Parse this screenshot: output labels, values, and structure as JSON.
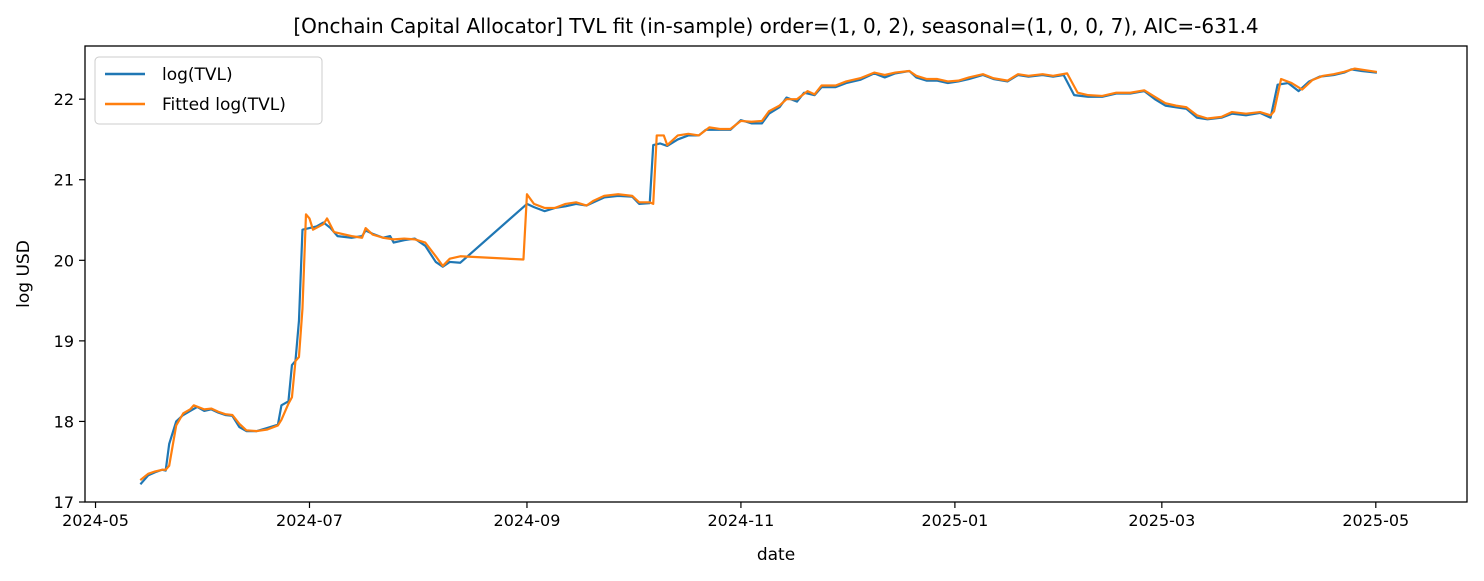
{
  "chart_data": {
    "type": "line",
    "title": "[Onchain Capital Allocator] TVL fit (in-sample)  order=(1, 0, 2), seasonal=(1, 0, 0, 7), AIC=-631.4",
    "xlabel": "date",
    "ylabel": "log USD",
    "xlim": [
      "2024-04-28",
      "2025-05-27"
    ],
    "ylim": [
      17.0,
      22.66
    ],
    "x_ticks": [
      "2024-05-01",
      "2024-07-01",
      "2024-09-01",
      "2024-11-01",
      "2025-01-01",
      "2025-03-01",
      "2025-05-01"
    ],
    "x_tick_labels": [
      "2024-05",
      "2024-07",
      "2024-09",
      "2024-11",
      "2025-01",
      "2025-03",
      "2025-05"
    ],
    "y_ticks": [
      17,
      18,
      19,
      20,
      21,
      22
    ],
    "y_tick_labels": [
      "17",
      "18",
      "19",
      "20",
      "21",
      "22"
    ],
    "grid": false,
    "legend_position": "top-left",
    "series": [
      {
        "name": "log(TVL)",
        "color": "#1f77b4",
        "points": [
          [
            "2024-05-14",
            17.23
          ],
          [
            "2024-05-16",
            17.33
          ],
          [
            "2024-05-18",
            17.37
          ],
          [
            "2024-05-20",
            17.4
          ],
          [
            "2024-05-21",
            17.39
          ],
          [
            "2024-05-22",
            17.72
          ],
          [
            "2024-05-24",
            18.0
          ],
          [
            "2024-05-26",
            18.08
          ],
          [
            "2024-05-28",
            18.13
          ],
          [
            "2024-05-30",
            18.18
          ],
          [
            "2024-06-01",
            18.13
          ],
          [
            "2024-06-03",
            18.15
          ],
          [
            "2024-06-05",
            18.11
          ],
          [
            "2024-06-07",
            18.08
          ],
          [
            "2024-06-09",
            18.07
          ],
          [
            "2024-06-11",
            17.93
          ],
          [
            "2024-06-13",
            17.88
          ],
          [
            "2024-06-16",
            17.88
          ],
          [
            "2024-06-19",
            17.92
          ],
          [
            "2024-06-22",
            17.96
          ],
          [
            "2024-06-23",
            18.2
          ],
          [
            "2024-06-25",
            18.25
          ],
          [
            "2024-06-26",
            18.7
          ],
          [
            "2024-06-27",
            18.75
          ],
          [
            "2024-06-28",
            19.25
          ],
          [
            "2024-06-29",
            20.38
          ],
          [
            "2024-07-01",
            20.4
          ],
          [
            "2024-07-03",
            20.42
          ],
          [
            "2024-07-05",
            20.47
          ],
          [
            "2024-07-07",
            20.4
          ],
          [
            "2024-07-09",
            20.3
          ],
          [
            "2024-07-13",
            20.28
          ],
          [
            "2024-07-16",
            20.3
          ],
          [
            "2024-07-17",
            20.37
          ],
          [
            "2024-07-19",
            20.33
          ],
          [
            "2024-07-22",
            20.28
          ],
          [
            "2024-07-24",
            20.3
          ],
          [
            "2024-07-25",
            20.22
          ],
          [
            "2024-07-28",
            20.25
          ],
          [
            "2024-07-31",
            20.27
          ],
          [
            "2024-08-03",
            20.18
          ],
          [
            "2024-08-06",
            19.98
          ],
          [
            "2024-08-08",
            19.92
          ],
          [
            "2024-08-10",
            19.98
          ],
          [
            "2024-08-13",
            19.97
          ],
          [
            "2024-09-01",
            20.7
          ],
          [
            "2024-09-03",
            20.66
          ],
          [
            "2024-09-06",
            20.61
          ],
          [
            "2024-09-09",
            20.65
          ],
          [
            "2024-09-12",
            20.67
          ],
          [
            "2024-09-15",
            20.7
          ],
          [
            "2024-09-18",
            20.68
          ],
          [
            "2024-09-20",
            20.72
          ],
          [
            "2024-09-23",
            20.78
          ],
          [
            "2024-09-27",
            20.8
          ],
          [
            "2024-10-01",
            20.79
          ],
          [
            "2024-10-03",
            20.7
          ],
          [
            "2024-10-06",
            20.71
          ],
          [
            "2024-10-07",
            21.43
          ],
          [
            "2024-10-09",
            21.45
          ],
          [
            "2024-10-11",
            21.42
          ],
          [
            "2024-10-14",
            21.5
          ],
          [
            "2024-10-17",
            21.55
          ],
          [
            "2024-10-20",
            21.55
          ],
          [
            "2024-10-22",
            21.62
          ],
          [
            "2024-10-26",
            21.62
          ],
          [
            "2024-10-29",
            21.62
          ],
          [
            "2024-11-01",
            21.74
          ],
          [
            "2024-11-04",
            21.7
          ],
          [
            "2024-11-07",
            21.7
          ],
          [
            "2024-11-09",
            21.82
          ],
          [
            "2024-11-12",
            21.9
          ],
          [
            "2024-11-14",
            22.02
          ],
          [
            "2024-11-17",
            21.97
          ],
          [
            "2024-11-19",
            22.08
          ],
          [
            "2024-11-22",
            22.05
          ],
          [
            "2024-11-24",
            22.15
          ],
          [
            "2024-11-28",
            22.15
          ],
          [
            "2024-12-01",
            22.2
          ],
          [
            "2024-12-05",
            22.24
          ],
          [
            "2024-12-09",
            22.32
          ],
          [
            "2024-12-12",
            22.27
          ],
          [
            "2024-12-15",
            22.32
          ],
          [
            "2024-12-19",
            22.35
          ],
          [
            "2024-12-21",
            22.27
          ],
          [
            "2024-12-24",
            22.23
          ],
          [
            "2024-12-27",
            22.23
          ],
          [
            "2024-12-30",
            22.2
          ],
          [
            "2025-01-02",
            22.22
          ],
          [
            "2025-01-05",
            22.25
          ],
          [
            "2025-01-09",
            22.3
          ],
          [
            "2025-01-12",
            22.25
          ],
          [
            "2025-01-16",
            22.22
          ],
          [
            "2025-01-19",
            22.3
          ],
          [
            "2025-01-22",
            22.28
          ],
          [
            "2025-01-26",
            22.3
          ],
          [
            "2025-01-29",
            22.28
          ],
          [
            "2025-02-01",
            22.3
          ],
          [
            "2025-02-04",
            22.05
          ],
          [
            "2025-02-08",
            22.03
          ],
          [
            "2025-02-12",
            22.03
          ],
          [
            "2025-02-16",
            22.07
          ],
          [
            "2025-02-20",
            22.07
          ],
          [
            "2025-02-24",
            22.1
          ],
          [
            "2025-02-27",
            22.0
          ],
          [
            "2025-03-02",
            21.92
          ],
          [
            "2025-03-05",
            21.9
          ],
          [
            "2025-03-08",
            21.88
          ],
          [
            "2025-03-11",
            21.77
          ],
          [
            "2025-03-14",
            21.75
          ],
          [
            "2025-03-18",
            21.77
          ],
          [
            "2025-03-21",
            21.82
          ],
          [
            "2025-03-25",
            21.8
          ],
          [
            "2025-03-29",
            21.83
          ],
          [
            "2025-04-01",
            21.77
          ],
          [
            "2025-04-03",
            22.18
          ],
          [
            "2025-04-06",
            22.2
          ],
          [
            "2025-04-09",
            22.1
          ],
          [
            "2025-04-12",
            22.22
          ],
          [
            "2025-04-15",
            22.28
          ],
          [
            "2025-04-19",
            22.3
          ],
          [
            "2025-04-22",
            22.33
          ],
          [
            "2025-04-24",
            22.37
          ],
          [
            "2025-04-27",
            22.35
          ],
          [
            "2025-05-01",
            22.33
          ]
        ]
      },
      {
        "name": "Fitted log(TVL)",
        "color": "#ff7f0e",
        "points": [
          [
            "2024-05-14",
            17.28
          ],
          [
            "2024-05-16",
            17.35
          ],
          [
            "2024-05-18",
            17.38
          ],
          [
            "2024-05-20",
            17.4
          ],
          [
            "2024-05-21",
            17.4
          ],
          [
            "2024-05-22",
            17.45
          ],
          [
            "2024-05-24",
            17.95
          ],
          [
            "2024-05-26",
            18.1
          ],
          [
            "2024-05-28",
            18.15
          ],
          [
            "2024-05-29",
            18.2
          ],
          [
            "2024-06-01",
            18.15
          ],
          [
            "2024-06-03",
            18.16
          ],
          [
            "2024-06-05",
            18.12
          ],
          [
            "2024-06-07",
            18.09
          ],
          [
            "2024-06-09",
            18.08
          ],
          [
            "2024-06-11",
            17.97
          ],
          [
            "2024-06-13",
            17.89
          ],
          [
            "2024-06-16",
            17.88
          ],
          [
            "2024-06-19",
            17.9
          ],
          [
            "2024-06-22",
            17.95
          ],
          [
            "2024-06-23",
            18.02
          ],
          [
            "2024-06-25",
            18.22
          ],
          [
            "2024-06-26",
            18.3
          ],
          [
            "2024-06-27",
            18.75
          ],
          [
            "2024-06-28",
            18.8
          ],
          [
            "2024-06-29",
            19.4
          ],
          [
            "2024-06-30",
            20.57
          ],
          [
            "2024-07-01",
            20.52
          ],
          [
            "2024-07-02",
            20.38
          ],
          [
            "2024-07-05",
            20.45
          ],
          [
            "2024-07-06",
            20.52
          ],
          [
            "2024-07-08",
            20.35
          ],
          [
            "2024-07-13",
            20.3
          ],
          [
            "2024-07-16",
            20.28
          ],
          [
            "2024-07-17",
            20.4
          ],
          [
            "2024-07-19",
            20.32
          ],
          [
            "2024-07-22",
            20.28
          ],
          [
            "2024-07-25",
            20.26
          ],
          [
            "2024-07-28",
            20.27
          ],
          [
            "2024-07-31",
            20.26
          ],
          [
            "2024-08-03",
            20.22
          ],
          [
            "2024-08-06",
            20.05
          ],
          [
            "2024-08-08",
            19.93
          ],
          [
            "2024-08-10",
            20.02
          ],
          [
            "2024-08-13",
            20.05
          ],
          [
            "2024-08-31",
            20.01
          ],
          [
            "2024-09-01",
            20.82
          ],
          [
            "2024-09-03",
            20.7
          ],
          [
            "2024-09-06",
            20.65
          ],
          [
            "2024-09-09",
            20.65
          ],
          [
            "2024-09-12",
            20.7
          ],
          [
            "2024-09-15",
            20.72
          ],
          [
            "2024-09-18",
            20.68
          ],
          [
            "2024-09-20",
            20.74
          ],
          [
            "2024-09-23",
            20.8
          ],
          [
            "2024-09-27",
            20.82
          ],
          [
            "2024-10-01",
            20.8
          ],
          [
            "2024-10-03",
            20.72
          ],
          [
            "2024-10-06",
            20.72
          ],
          [
            "2024-10-07",
            20.7
          ],
          [
            "2024-10-08",
            21.55
          ],
          [
            "2024-10-10",
            21.55
          ],
          [
            "2024-10-11",
            21.43
          ],
          [
            "2024-10-14",
            21.55
          ],
          [
            "2024-10-17",
            21.57
          ],
          [
            "2024-10-20",
            21.55
          ],
          [
            "2024-10-23",
            21.65
          ],
          [
            "2024-10-26",
            21.63
          ],
          [
            "2024-10-29",
            21.63
          ],
          [
            "2024-11-01",
            21.73
          ],
          [
            "2024-11-04",
            21.72
          ],
          [
            "2024-11-07",
            21.73
          ],
          [
            "2024-11-09",
            21.85
          ],
          [
            "2024-11-12",
            21.92
          ],
          [
            "2024-11-14",
            22.0
          ],
          [
            "2024-11-17",
            22.0
          ],
          [
            "2024-11-20",
            22.1
          ],
          [
            "2024-11-22",
            22.06
          ],
          [
            "2024-11-24",
            22.17
          ],
          [
            "2024-11-28",
            22.17
          ],
          [
            "2024-12-01",
            22.22
          ],
          [
            "2024-12-05",
            22.26
          ],
          [
            "2024-12-09",
            22.33
          ],
          [
            "2024-12-12",
            22.3
          ],
          [
            "2024-12-15",
            22.33
          ],
          [
            "2024-12-19",
            22.35
          ],
          [
            "2024-12-21",
            22.29
          ],
          [
            "2024-12-24",
            22.25
          ],
          [
            "2024-12-27",
            22.25
          ],
          [
            "2024-12-30",
            22.22
          ],
          [
            "2025-01-02",
            22.23
          ],
          [
            "2025-01-05",
            22.27
          ],
          [
            "2025-01-09",
            22.31
          ],
          [
            "2025-01-12",
            22.26
          ],
          [
            "2025-01-16",
            22.23
          ],
          [
            "2025-01-19",
            22.31
          ],
          [
            "2025-01-22",
            22.29
          ],
          [
            "2025-01-26",
            22.31
          ],
          [
            "2025-01-29",
            22.29
          ],
          [
            "2025-02-02",
            22.32
          ],
          [
            "2025-02-05",
            22.08
          ],
          [
            "2025-02-08",
            22.05
          ],
          [
            "2025-02-12",
            22.04
          ],
          [
            "2025-02-16",
            22.08
          ],
          [
            "2025-02-20",
            22.08
          ],
          [
            "2025-02-24",
            22.11
          ],
          [
            "2025-02-27",
            22.03
          ],
          [
            "2025-03-02",
            21.95
          ],
          [
            "2025-03-05",
            21.92
          ],
          [
            "2025-03-08",
            21.9
          ],
          [
            "2025-03-11",
            21.8
          ],
          [
            "2025-03-14",
            21.76
          ],
          [
            "2025-03-18",
            21.78
          ],
          [
            "2025-03-21",
            21.84
          ],
          [
            "2025-03-25",
            21.82
          ],
          [
            "2025-03-29",
            21.84
          ],
          [
            "2025-04-01",
            21.8
          ],
          [
            "2025-04-02",
            21.85
          ],
          [
            "2025-04-04",
            22.25
          ],
          [
            "2025-04-07",
            22.2
          ],
          [
            "2025-04-10",
            22.12
          ],
          [
            "2025-04-13",
            22.24
          ],
          [
            "2025-04-16",
            22.29
          ],
          [
            "2025-04-19",
            22.31
          ],
          [
            "2025-04-22",
            22.34
          ],
          [
            "2025-04-25",
            22.38
          ],
          [
            "2025-04-28",
            22.36
          ],
          [
            "2025-05-01",
            22.34
          ]
        ]
      }
    ]
  }
}
